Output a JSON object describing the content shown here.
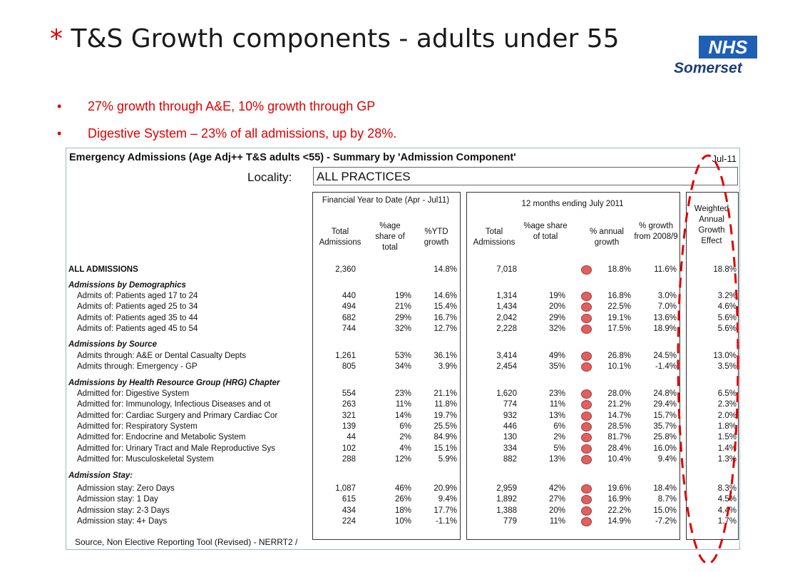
{
  "title": {
    "star": "*",
    "text": "T&S Growth components - adults under 55"
  },
  "logo": {
    "nhs": "NHS",
    "region": "Somerset"
  },
  "bullets": [
    "27% growth through A&E, 10% growth through GP",
    "Digestive System – 23% of all admissions, up by 28%."
  ],
  "sheet": {
    "title": "Emergency Admissions (Age Adj++ T&S adults <55) - Summary by 'Admission Component'",
    "month": "Jul-11",
    "locality_label": "Locality:",
    "locality_value": "ALL PRACTICES",
    "fytd_header": "Financial Year to Date (Apr - Jul11)",
    "m12_header": "12 months ending July 2011",
    "col_headers": {
      "fy_total": "Total Admissions",
      "fy_share": "%age share of total",
      "fy_growth": "%YTD growth",
      "m_total": "Total Admissions",
      "m_share": "%age share of total",
      "m_annual": "% annual growth",
      "m_growth08": "% growth from 2008/9",
      "weighted": "Weighted Annual Growth Effect"
    },
    "rows": [
      {
        "label": "ALL ADMISSIONS",
        "style": "bold",
        "fy_total": "2,360",
        "fy_share": "",
        "fy_growth": "14.8%",
        "m_total": "7,018",
        "m_share": "",
        "m_annual": "18.8%",
        "m_growth08": "11.6%",
        "weighted": "18.8%",
        "dot": true
      },
      {
        "label": "Admissions by Demographics",
        "style": "section"
      },
      {
        "label": "Admits of: Patients aged 17 to 24",
        "style": "sub",
        "fy_total": "440",
        "fy_share": "19%",
        "fy_growth": "14.6%",
        "m_total": "1,314",
        "m_share": "19%",
        "m_annual": "16.8%",
        "m_growth08": "3.0%",
        "weighted": "3.2%",
        "dot": true
      },
      {
        "label": "Admits of: Patients aged 25 to 34",
        "style": "sub",
        "fy_total": "494",
        "fy_share": "21%",
        "fy_growth": "15.4%",
        "m_total": "1,434",
        "m_share": "20%",
        "m_annual": "22.5%",
        "m_growth08": "7.0%",
        "weighted": "4.6%",
        "dot": true
      },
      {
        "label": "Admits of: Patients aged 35 to 44",
        "style": "sub",
        "fy_total": "682",
        "fy_share": "29%",
        "fy_growth": "16.7%",
        "m_total": "2,042",
        "m_share": "29%",
        "m_annual": "19.1%",
        "m_growth08": "13.6%",
        "weighted": "5.6%",
        "dot": true
      },
      {
        "label": "Admits of: Patients aged 45 to 54",
        "style": "sub",
        "fy_total": "744",
        "fy_share": "32%",
        "fy_growth": "12.7%",
        "m_total": "2,228",
        "m_share": "32%",
        "m_annual": "17.5%",
        "m_growth08": "18.9%",
        "weighted": "5.6%",
        "dot": true
      },
      {
        "label": "Admissions by Source",
        "style": "section"
      },
      {
        "label": "Admits through: A&E or Dental Casualty Depts",
        "style": "sub",
        "fy_total": "1,261",
        "fy_share": "53%",
        "fy_growth": "36.1%",
        "m_total": "3,414",
        "m_share": "49%",
        "m_annual": "26.8%",
        "m_growth08": "24.5%",
        "weighted": "13.0%",
        "dot": true
      },
      {
        "label": "Admits through: Emergency - GP",
        "style": "sub",
        "fy_total": "805",
        "fy_share": "34%",
        "fy_growth": "3.9%",
        "m_total": "2,454",
        "m_share": "35%",
        "m_annual": "10.1%",
        "m_growth08": "-1.4%",
        "weighted": "3.5%",
        "dot": true
      },
      {
        "label": "Admissions by Health Resource Group (HRG) Chapter",
        "style": "section"
      },
      {
        "label": "Admitted for: Digestive System",
        "style": "sub",
        "fy_total": "554",
        "fy_share": "23%",
        "fy_growth": "21.1%",
        "m_total": "1,620",
        "m_share": "23%",
        "m_annual": "28.0%",
        "m_growth08": "24.8%",
        "weighted": "6.5%",
        "dot": true
      },
      {
        "label": "Admitted for: Immunology, Infectious Diseases and ot",
        "style": "sub",
        "fy_total": "263",
        "fy_share": "11%",
        "fy_growth": "11.8%",
        "m_total": "774",
        "m_share": "11%",
        "m_annual": "21.2%",
        "m_growth08": "29.4%",
        "weighted": "2.3%",
        "dot": true
      },
      {
        "label": "Admitted for: Cardiac Surgery and Primary Cardiac Cor",
        "style": "sub",
        "fy_total": "321",
        "fy_share": "14%",
        "fy_growth": "19.7%",
        "m_total": "932",
        "m_share": "13%",
        "m_annual": "14.7%",
        "m_growth08": "15.7%",
        "weighted": "2.0%",
        "dot": true
      },
      {
        "label": "Admitted for: Respiratory System",
        "style": "sub",
        "fy_total": "139",
        "fy_share": "6%",
        "fy_growth": "25.5%",
        "m_total": "446",
        "m_share": "6%",
        "m_annual": "28.5%",
        "m_growth08": "35.7%",
        "weighted": "1.8%",
        "dot": true
      },
      {
        "label": "Admitted for: Endocrine and Metabolic System",
        "style": "sub",
        "fy_total": "44",
        "fy_share": "2%",
        "fy_growth": "84.9%",
        "m_total": "130",
        "m_share": "2%",
        "m_annual": "81.7%",
        "m_growth08": "25.8%",
        "weighted": "1.5%",
        "dot": true
      },
      {
        "label": "Admitted for: Urinary Tract and Male Reproductive Sys",
        "style": "sub",
        "fy_total": "102",
        "fy_share": "4%",
        "fy_growth": "15.1%",
        "m_total": "334",
        "m_share": "5%",
        "m_annual": "28.4%",
        "m_growth08": "16.0%",
        "weighted": "1.4%",
        "dot": true
      },
      {
        "label": "Admitted for: Musculoskeletal System",
        "style": "sub",
        "fy_total": "288",
        "fy_share": "12%",
        "fy_growth": "5.9%",
        "m_total": "882",
        "m_share": "13%",
        "m_annual": "10.4%",
        "m_growth08": "9.4%",
        "weighted": "1.3%",
        "dot": true
      },
      {
        "label": "Admission Stay:",
        "style": "section"
      },
      {
        "label": "Admission stay: Zero Days",
        "style": "sub",
        "fy_total": "1,087",
        "fy_share": "46%",
        "fy_growth": "20.9%",
        "m_total": "2,959",
        "m_share": "42%",
        "m_annual": "19.6%",
        "m_growth08": "18.4%",
        "weighted": "8.3%",
        "dot": true
      },
      {
        "label": "Admission stay: 1 Day",
        "style": "sub",
        "fy_total": "615",
        "fy_share": "26%",
        "fy_growth": "9.4%",
        "m_total": "1,892",
        "m_share": "27%",
        "m_annual": "16.9%",
        "m_growth08": "8.7%",
        "weighted": "4.5%",
        "dot": true
      },
      {
        "label": "Admission stay: 2-3 Days",
        "style": "sub",
        "fy_total": "434",
        "fy_share": "18%",
        "fy_growth": "17.7%",
        "m_total": "1,388",
        "m_share": "20%",
        "m_annual": "22.2%",
        "m_growth08": "15.0%",
        "weighted": "4.4%",
        "dot": true
      },
      {
        "label": "Admission stay: 4+ Days",
        "style": "sub",
        "fy_total": "224",
        "fy_share": "10%",
        "fy_growth": "-1.1%",
        "m_total": "779",
        "m_share": "11%",
        "m_annual": "14.9%",
        "m_growth08": "-7.2%",
        "weighted": "1.7%",
        "dot": true
      }
    ],
    "source": "Source, Non Elective Reporting Tool (Revised) - NERRT2 /"
  },
  "colors": {
    "accent_red": "#e00000",
    "nhs_blue": "#1f5fb5",
    "traffic_red": "#e06060"
  }
}
